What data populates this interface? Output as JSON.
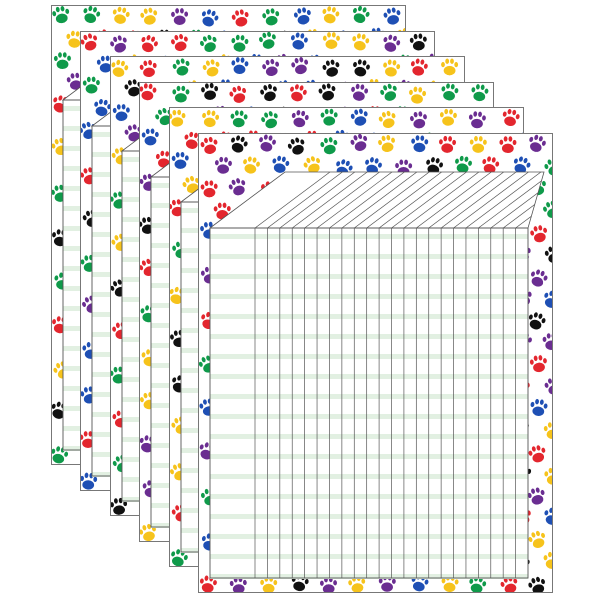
{
  "product": {
    "sheet_count": 6,
    "chart_columns": 22,
    "border_pattern": "paw-prints",
    "paw_colors": [
      "#e3262e",
      "#1e4fb4",
      "#0f9a4a",
      "#f6c31b",
      "#6a2d91",
      "#111111"
    ],
    "stripe_color": "#e2f0e2",
    "line_color": "#555555"
  }
}
